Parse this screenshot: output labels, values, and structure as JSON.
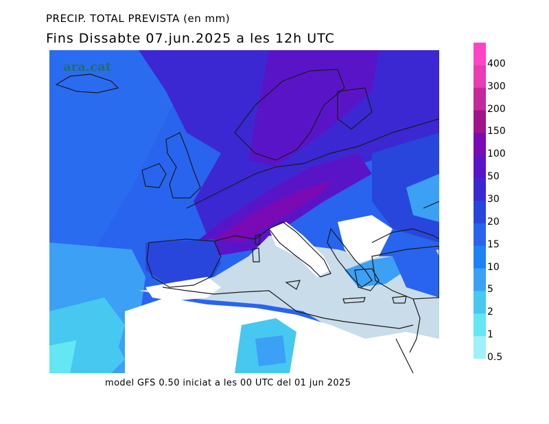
{
  "title_line1": "PRECIP. TOTAL PREVISTA (en mm)",
  "title_line2": "Fins Dissabte  07.jun.2025 a les 12h UTC",
  "watermark": "ara.cat",
  "footer": "model GFS 0.50 iniciat a les 00 UTC del 01 jun 2025",
  "legend": [
    {
      "label": "400",
      "color": "#ff44c8"
    },
    {
      "label": "300",
      "color": "#e83cb0"
    },
    {
      "label": "200",
      "color": "#c4289a"
    },
    {
      "label": "150",
      "color": "#a01488"
    },
    {
      "label": "100",
      "color": "#7a0ab4"
    },
    {
      "label": "50",
      "color": "#5a14c8"
    },
    {
      "label": "30",
      "color": "#3c28d2"
    },
    {
      "label": "20",
      "color": "#2846dc"
    },
    {
      "label": "15",
      "color": "#2864ee"
    },
    {
      "label": "10",
      "color": "#1e82f5"
    },
    {
      "label": "5",
      "color": "#3ca0f5"
    },
    {
      "label": "2",
      "color": "#46c8f0"
    },
    {
      "label": "1",
      "color": "#64e6f5"
    },
    {
      "label": "0.5",
      "color": "#a0f0fa"
    }
  ],
  "colors": {
    "dry_land": "#ffffff",
    "dry_sea": "#c8dcea",
    "coastline": "#1a1a1a"
  }
}
